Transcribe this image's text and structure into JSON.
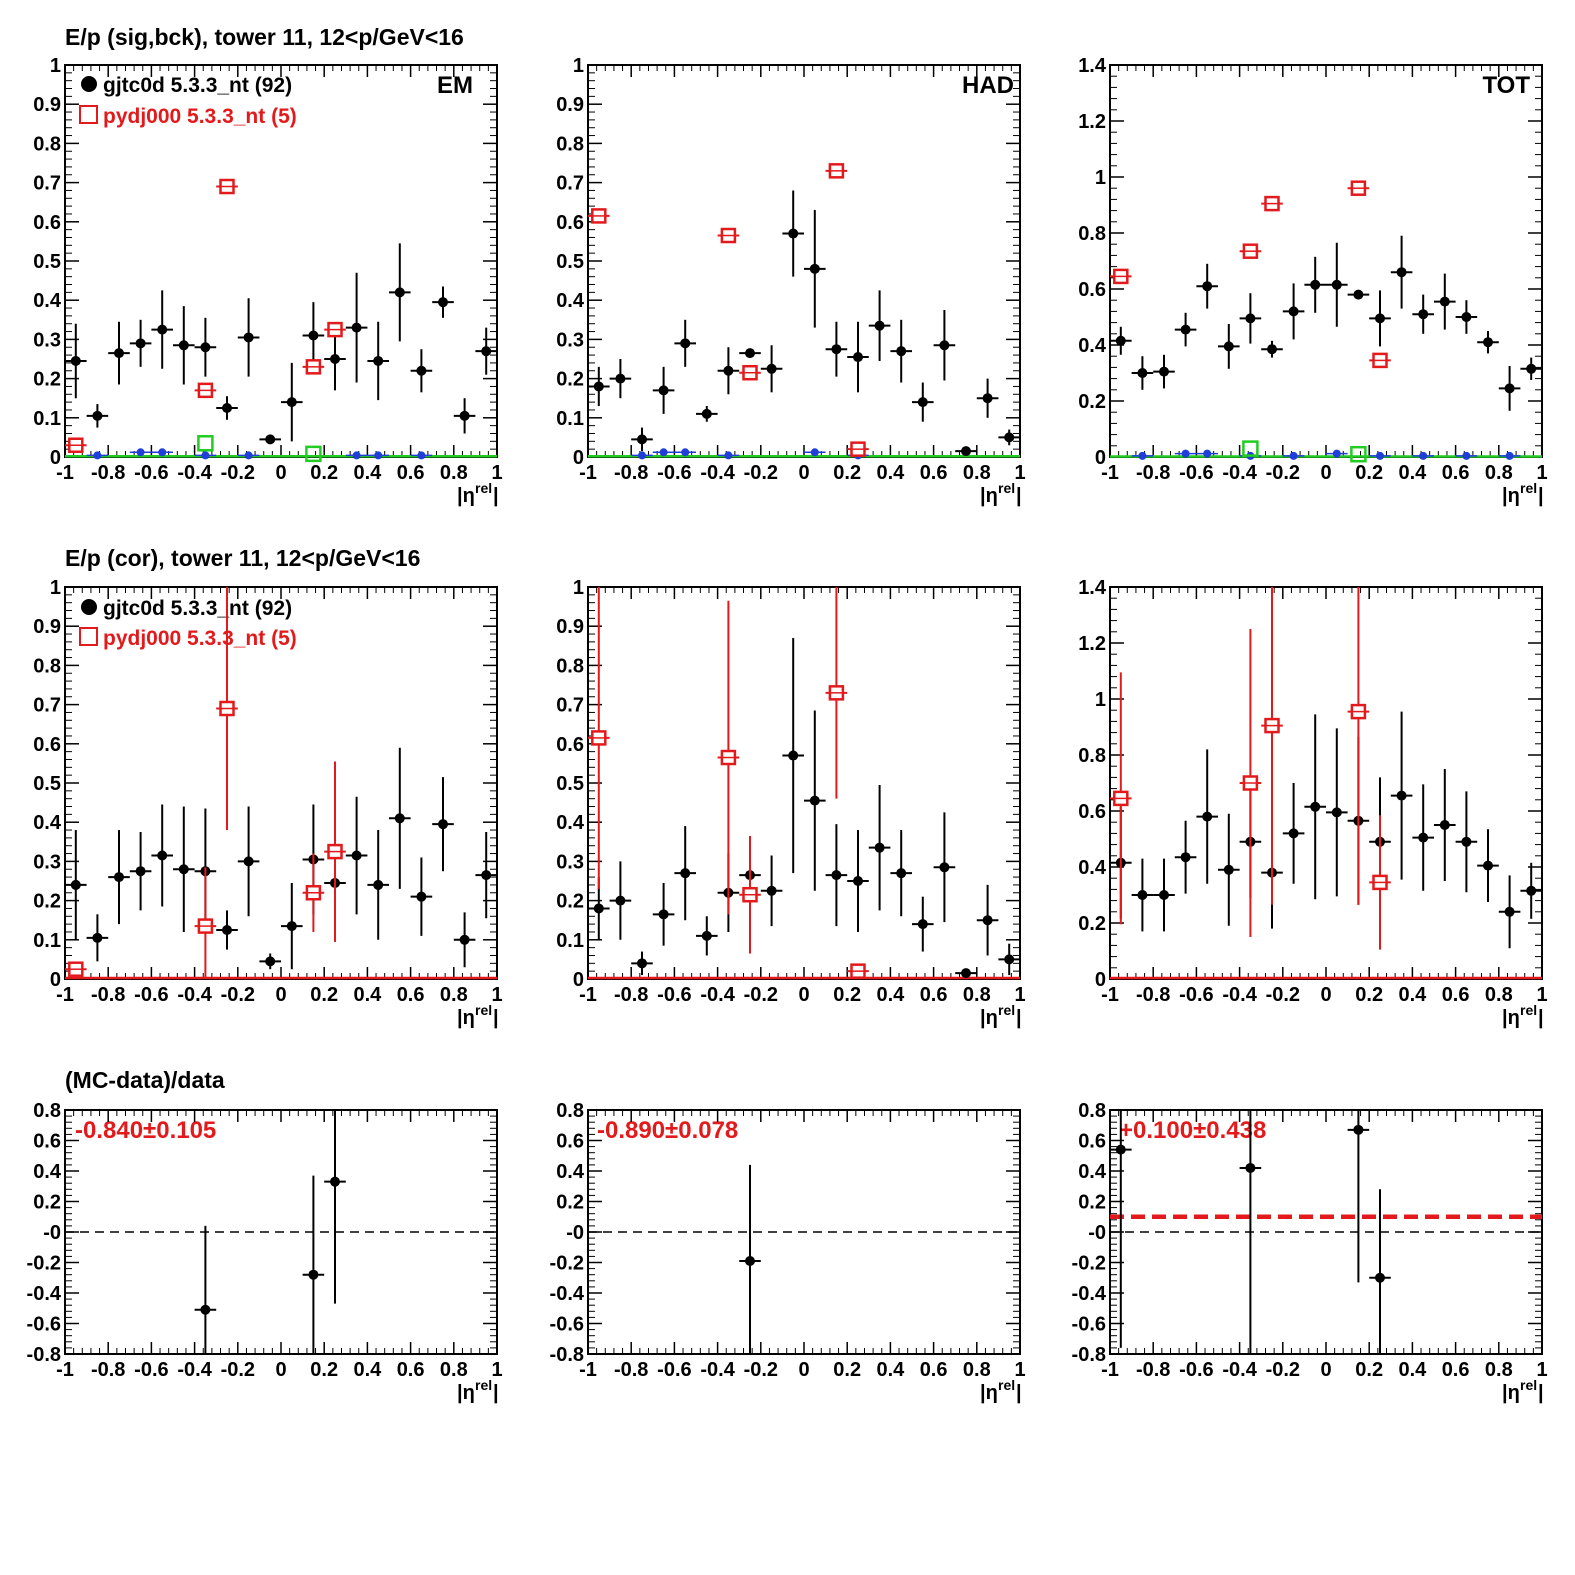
{
  "colors": {
    "data": "#000000",
    "mc": "#e31a1c",
    "blue": "#1f3fd6",
    "green": "#22cc22"
  },
  "rows": {
    "row1_title": "E/p (sig,bck), tower 11, 12<p/GeV<16",
    "row2_title": "E/p (cor), tower 11, 12<p/GeV<16",
    "row3_title": "(MC-data)/data"
  },
  "legend": {
    "data_label": "gjtc0d 5.3.3_nt (92)",
    "mc_label": "pydj000 5.3.3_nt (5)"
  },
  "labels": {
    "em": "EM",
    "had": "HAD",
    "tot": "TOT",
    "xlabel": "|η",
    "xlabel_sup": "rel",
    "xlabel_close": "|"
  },
  "x_ticks": [
    "-1",
    "-0.8",
    "-0.6",
    "-0.4",
    "-0.2",
    "0",
    "0.2",
    "0.4",
    "0.6",
    "0.8",
    "1"
  ],
  "y_ticks_1": [
    "0",
    "0.1",
    "0.2",
    "0.3",
    "0.4",
    "0.5",
    "0.6",
    "0.7",
    "0.8",
    "0.9",
    "1"
  ],
  "y_ticks_14": [
    "0",
    "0.2",
    "0.4",
    "0.6",
    "0.8",
    "1",
    "1.2",
    "1.4"
  ],
  "y_ticks_ratio": [
    "-0.8",
    "-0.6",
    "-0.4",
    "-0.2",
    "-0",
    "0.2",
    "0.4",
    "0.6",
    "0.8"
  ],
  "ratio_results": {
    "em": "-0.840±0.105",
    "had": "-0.890±0.078",
    "tot": "+0.100±0.438"
  },
  "chart_data": [
    {
      "id": "sig-em",
      "type": "scatter",
      "xlim": [
        -1,
        1
      ],
      "ylim": [
        0,
        1
      ],
      "label": "EM",
      "series": [
        {
          "name": "gjtc0d 5.3.3_nt (92)",
          "points": [
            [
              -0.95,
              0.245,
              0.095
            ],
            [
              -0.85,
              0.105,
              0.03
            ],
            [
              -0.75,
              0.265,
              0.08
            ],
            [
              -0.65,
              0.29,
              0.06
            ],
            [
              -0.55,
              0.325,
              0.1
            ],
            [
              -0.45,
              0.285,
              0.1
            ],
            [
              -0.35,
              0.28,
              0.075
            ],
            [
              -0.25,
              0.125,
              0.03
            ],
            [
              -0.15,
              0.305,
              0.1
            ],
            [
              -0.05,
              0.045,
              0.005
            ],
            [
              0.05,
              0.14,
              0.1
            ],
            [
              0.15,
              0.31,
              0.085
            ],
            [
              0.25,
              0.25,
              0.08
            ],
            [
              0.35,
              0.33,
              0.14
            ],
            [
              0.45,
              0.245,
              0.1
            ],
            [
              0.55,
              0.42,
              0.125
            ],
            [
              0.65,
              0.22,
              0.055
            ],
            [
              0.75,
              0.395,
              0.04
            ],
            [
              0.85,
              0.105,
              0.045
            ],
            [
              0.95,
              0.27,
              0.06
            ]
          ]
        },
        {
          "name": "pydj000 5.3.3_nt (5)",
          "points": [
            [
              -0.95,
              0.03,
              0.0
            ],
            [
              -0.35,
              0.17,
              0.0
            ],
            [
              -0.25,
              0.69,
              0.0
            ],
            [
              0.15,
              0.23,
              0.0
            ],
            [
              0.25,
              0.325,
              0.0
            ]
          ]
        }
      ]
    },
    {
      "id": "sig-had",
      "type": "scatter",
      "xlim": [
        -1,
        1
      ],
      "ylim": [
        0,
        1
      ],
      "label": "HAD",
      "series": [
        {
          "name": "gjtc0d 5.3.3_nt (92)",
          "points": [
            [
              -0.95,
              0.18,
              0.05
            ],
            [
              -0.85,
              0.2,
              0.05
            ],
            [
              -0.75,
              0.045,
              0.03
            ],
            [
              -0.65,
              0.17,
              0.06
            ],
            [
              -0.55,
              0.29,
              0.06
            ],
            [
              -0.45,
              0.11,
              0.02
            ],
            [
              -0.35,
              0.22,
              0.06
            ],
            [
              -0.25,
              0.265,
              0.01
            ],
            [
              -0.15,
              0.225,
              0.06
            ],
            [
              -0.05,
              0.57,
              0.11
            ],
            [
              0.05,
              0.48,
              0.15
            ],
            [
              0.15,
              0.275,
              0.07
            ],
            [
              0.25,
              0.255,
              0.09
            ],
            [
              0.35,
              0.335,
              0.09
            ],
            [
              0.45,
              0.27,
              0.08
            ],
            [
              0.55,
              0.14,
              0.05
            ],
            [
              0.65,
              0.285,
              0.09
            ],
            [
              0.75,
              0.015,
              0.0
            ],
            [
              0.85,
              0.15,
              0.05
            ],
            [
              0.95,
              0.05,
              0.02
            ]
          ]
        },
        {
          "name": "pydj000 5.3.3_nt (5)",
          "points": [
            [
              -0.95,
              0.615,
              0.0
            ],
            [
              -0.35,
              0.565,
              0.0
            ],
            [
              -0.25,
              0.215,
              0.0
            ],
            [
              0.15,
              0.73,
              0.0
            ],
            [
              0.25,
              0.02,
              0.0
            ]
          ]
        }
      ]
    },
    {
      "id": "sig-tot",
      "type": "scatter",
      "xlim": [
        -1,
        1
      ],
      "ylim": [
        0,
        1.4
      ],
      "label": "TOT",
      "series": [
        {
          "name": "gjtc0d 5.3.3_nt (92)",
          "points": [
            [
              -0.95,
              0.415,
              0.05
            ],
            [
              -0.85,
              0.3,
              0.06
            ],
            [
              -0.75,
              0.305,
              0.06
            ],
            [
              -0.65,
              0.455,
              0.06
            ],
            [
              -0.55,
              0.61,
              0.08
            ],
            [
              -0.45,
              0.395,
              0.08
            ],
            [
              -0.35,
              0.495,
              0.09
            ],
            [
              -0.25,
              0.385,
              0.03
            ],
            [
              -0.15,
              0.52,
              0.1
            ],
            [
              -0.05,
              0.615,
              0.1
            ],
            [
              0.05,
              0.615,
              0.15
            ],
            [
              0.15,
              0.58,
              0.0
            ],
            [
              0.25,
              0.495,
              0.1
            ],
            [
              0.35,
              0.66,
              0.13
            ],
            [
              0.45,
              0.51,
              0.07
            ],
            [
              0.55,
              0.555,
              0.1
            ],
            [
              0.65,
              0.5,
              0.06
            ],
            [
              0.75,
              0.41,
              0.04
            ],
            [
              0.85,
              0.245,
              0.08
            ],
            [
              0.95,
              0.315,
              0.04
            ]
          ]
        },
        {
          "name": "pydj000 5.3.3_nt (5)",
          "points": [
            [
              -0.95,
              0.645,
              0.0
            ],
            [
              -0.35,
              0.735,
              0.0
            ],
            [
              -0.25,
              0.905,
              0.0
            ],
            [
              0.15,
              0.96,
              0.0
            ],
            [
              0.25,
              0.345,
              0.0
            ]
          ]
        }
      ]
    },
    {
      "id": "cor-em",
      "type": "scatter",
      "xlim": [
        -1,
        1
      ],
      "ylim": [
        0,
        1
      ],
      "series": [
        {
          "name": "gjtc0d 5.3.3_nt (92)",
          "points": [
            [
              -0.95,
              0.24,
              0.14
            ],
            [
              -0.85,
              0.105,
              0.06
            ],
            [
              -0.75,
              0.26,
              0.12
            ],
            [
              -0.65,
              0.275,
              0.1
            ],
            [
              -0.55,
              0.315,
              0.13
            ],
            [
              -0.45,
              0.28,
              0.16
            ],
            [
              -0.35,
              0.275,
              0.16
            ],
            [
              -0.25,
              0.125,
              0.05
            ],
            [
              -0.15,
              0.3,
              0.14
            ],
            [
              -0.05,
              0.045,
              0.02
            ],
            [
              0.05,
              0.135,
              0.11
            ],
            [
              0.15,
              0.305,
              0.14
            ],
            [
              0.25,
              0.245,
              0.15
            ],
            [
              0.35,
              0.315,
              0.15
            ],
            [
              0.45,
              0.24,
              0.14
            ],
            [
              0.55,
              0.41,
              0.18
            ],
            [
              0.65,
              0.21,
              0.1
            ],
            [
              0.75,
              0.395,
              0.12
            ],
            [
              0.85,
              0.1,
              0.07
            ],
            [
              0.95,
              0.265,
              0.11
            ]
          ]
        },
        {
          "name": "pydj000 5.3.3_nt (5)",
          "points": [
            [
              -0.95,
              0.025,
              0.0
            ],
            [
              -0.35,
              0.135,
              0.15
            ],
            [
              -0.25,
              0.69,
              0.31
            ],
            [
              0.15,
              0.22,
              0.1
            ],
            [
              0.25,
              0.325,
              0.23
            ]
          ]
        }
      ]
    },
    {
      "id": "cor-had",
      "type": "scatter",
      "xlim": [
        -1,
        1
      ],
      "ylim": [
        0,
        1
      ],
      "series": [
        {
          "name": "gjtc0d 5.3.3_nt (92)",
          "points": [
            [
              -0.95,
              0.18,
              0.08
            ],
            [
              -0.85,
              0.2,
              0.1
            ],
            [
              -0.75,
              0.04,
              0.03
            ],
            [
              -0.65,
              0.165,
              0.08
            ],
            [
              -0.55,
              0.27,
              0.12
            ],
            [
              -0.45,
              0.11,
              0.05
            ],
            [
              -0.35,
              0.22,
              0.1
            ],
            [
              -0.25,
              0.265,
              0.07
            ],
            [
              -0.15,
              0.225,
              0.09
            ],
            [
              -0.05,
              0.57,
              0.3
            ],
            [
              0.05,
              0.455,
              0.23
            ],
            [
              0.15,
              0.265,
              0.13
            ],
            [
              0.25,
              0.25,
              0.13
            ],
            [
              0.35,
              0.335,
              0.16
            ],
            [
              0.45,
              0.27,
              0.11
            ],
            [
              0.55,
              0.14,
              0.07
            ],
            [
              0.65,
              0.285,
              0.14
            ],
            [
              0.75,
              0.015,
              0.01
            ],
            [
              0.85,
              0.15,
              0.09
            ],
            [
              0.95,
              0.05,
              0.04
            ]
          ]
        },
        {
          "name": "pydj000 5.3.3_nt (5)",
          "points": [
            [
              -0.95,
              0.615,
              0.385
            ],
            [
              -0.35,
              0.565,
              0.4
            ],
            [
              -0.25,
              0.215,
              0.15
            ],
            [
              0.15,
              0.73,
              0.27
            ],
            [
              0.25,
              0.02,
              0.0
            ]
          ]
        }
      ]
    },
    {
      "id": "cor-tot",
      "type": "scatter",
      "xlim": [
        -1,
        1
      ],
      "ylim": [
        0,
        1.4
      ],
      "series": [
        {
          "name": "gjtc0d 5.3.3_nt (92)",
          "points": [
            [
              -0.95,
              0.415,
              0.2
            ],
            [
              -0.85,
              0.3,
              0.13
            ],
            [
              -0.75,
              0.3,
              0.13
            ],
            [
              -0.65,
              0.435,
              0.13
            ],
            [
              -0.55,
              0.58,
              0.24
            ],
            [
              -0.45,
              0.39,
              0.2
            ],
            [
              -0.35,
              0.49,
              0.2
            ],
            [
              -0.25,
              0.38,
              0.2
            ],
            [
              -0.15,
              0.52,
              0.18
            ],
            [
              -0.05,
              0.615,
              0.33
            ],
            [
              0.05,
              0.595,
              0.3
            ],
            [
              0.15,
              0.565,
              0.3
            ],
            [
              0.25,
              0.49,
              0.23
            ],
            [
              0.35,
              0.655,
              0.3
            ],
            [
              0.45,
              0.505,
              0.19
            ],
            [
              0.55,
              0.55,
              0.2
            ],
            [
              0.65,
              0.49,
              0.18
            ],
            [
              0.75,
              0.405,
              0.13
            ],
            [
              0.85,
              0.24,
              0.13
            ],
            [
              0.95,
              0.315,
              0.1
            ]
          ]
        },
        {
          "name": "pydj000 5.3.3_nt (5)",
          "points": [
            [
              -0.95,
              0.645,
              0.45
            ],
            [
              -0.35,
              0.7,
              0.55
            ],
            [
              -0.25,
              0.905,
              0.64
            ],
            [
              0.15,
              0.955,
              0.69
            ],
            [
              0.25,
              0.345,
              0.24
            ]
          ]
        }
      ]
    },
    {
      "id": "ratio-em",
      "type": "scatter",
      "xlim": [
        -1,
        1
      ],
      "ylim": [
        -0.8,
        0.8
      ],
      "fit": null,
      "series": [
        {
          "name": "",
          "points": [
            [
              -0.35,
              -0.51,
              0.55
            ],
            [
              0.15,
              -0.28,
              0.65
            ],
            [
              0.25,
              0.33,
              0.8
            ]
          ]
        }
      ]
    },
    {
      "id": "ratio-had",
      "type": "scatter",
      "xlim": [
        -1,
        1
      ],
      "ylim": [
        -0.8,
        0.8
      ],
      "fit": null,
      "series": [
        {
          "name": "",
          "points": [
            [
              -0.25,
              -0.19,
              0.63
            ]
          ]
        }
      ]
    },
    {
      "id": "ratio-tot",
      "type": "scatter",
      "xlim": [
        -1,
        1
      ],
      "ylim": [
        -0.8,
        0.8
      ],
      "fit": 0.1,
      "series": [
        {
          "name": "",
          "points": [
            [
              -0.95,
              0.54,
              1.3
            ],
            [
              -0.35,
              0.42,
              1.3
            ],
            [
              0.15,
              0.67,
              1.0
            ],
            [
              0.25,
              -0.3,
              0.58
            ]
          ]
        }
      ]
    }
  ]
}
